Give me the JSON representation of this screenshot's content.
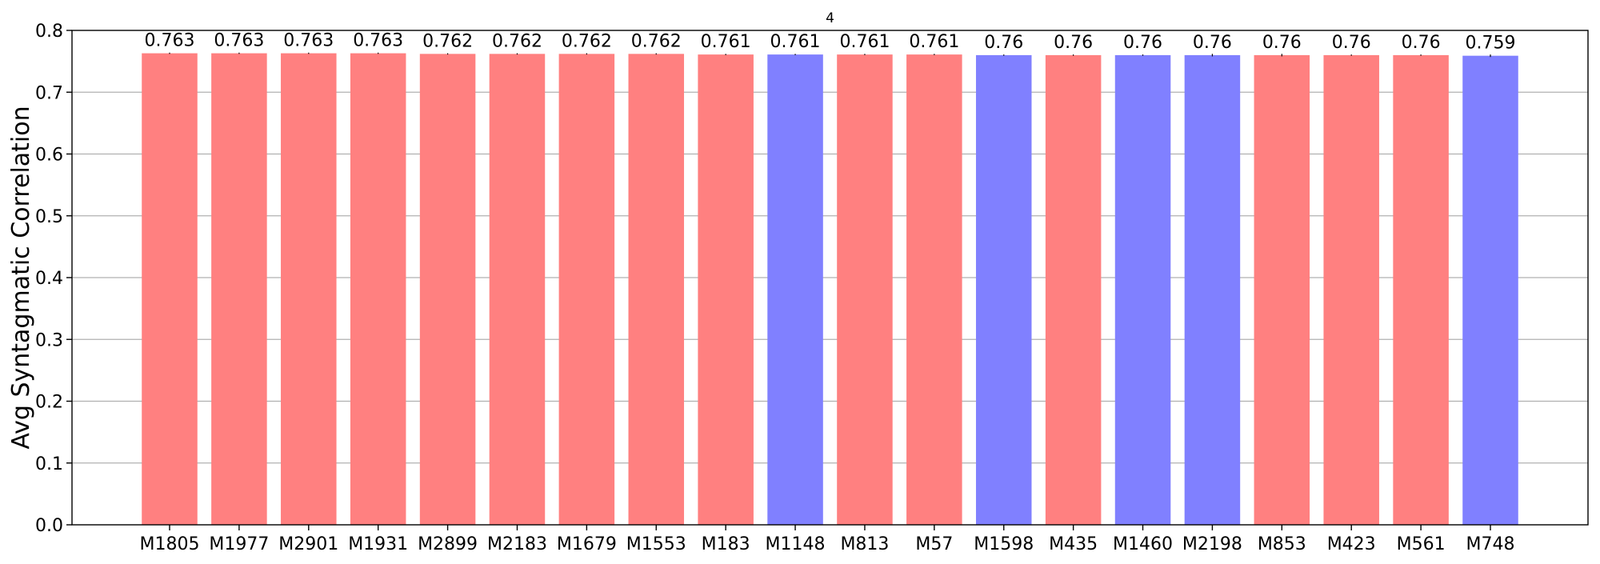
{
  "chart_data": {
    "type": "bar",
    "title": "4",
    "xlabel": "",
    "ylabel": "Avg Syntagmatic Correlation",
    "ylim": [
      0,
      0.8
    ],
    "yticks": [
      0.0,
      0.1,
      0.2,
      0.3,
      0.4,
      0.5,
      0.6,
      0.7,
      0.8
    ],
    "ytick_labels": [
      "0.0",
      "0.1",
      "0.2",
      "0.3",
      "0.4",
      "0.5",
      "0.6",
      "0.7",
      "0.8"
    ],
    "grid": "horizontal",
    "categories": [
      "M1805",
      "M1977",
      "M2901",
      "M1931",
      "M2899",
      "M2183",
      "M1679",
      "M1553",
      "M183",
      "M1148",
      "M813",
      "M57",
      "M1598",
      "M435",
      "M1460",
      "M2198",
      "M853",
      "M423",
      "M561",
      "M748"
    ],
    "values": [
      0.763,
      0.763,
      0.763,
      0.763,
      0.762,
      0.762,
      0.762,
      0.762,
      0.761,
      0.761,
      0.761,
      0.761,
      0.76,
      0.76,
      0.76,
      0.76,
      0.76,
      0.76,
      0.76,
      0.759
    ],
    "value_labels": [
      "0.763",
      "0.763",
      "0.763",
      "0.763",
      "0.762",
      "0.762",
      "0.762",
      "0.762",
      "0.761",
      "0.761",
      "0.761",
      "0.761",
      "0.76",
      "0.76",
      "0.76",
      "0.76",
      "0.76",
      "0.76",
      "0.76",
      "0.759"
    ],
    "bar_groups": [
      "red",
      "red",
      "red",
      "red",
      "red",
      "red",
      "red",
      "red",
      "red",
      "blue",
      "red",
      "red",
      "blue",
      "red",
      "blue",
      "blue",
      "red",
      "red",
      "red",
      "blue"
    ],
    "error": [
      0.001,
      0.001,
      0.001,
      0.001,
      0.001,
      0.001,
      0.001,
      0.001,
      0.001,
      0.001,
      0.001,
      0.001,
      0.001,
      0.001,
      0.001,
      0.002,
      0.002,
      0.001,
      0.001,
      0.002
    ],
    "colors": {
      "red": "#ff8080",
      "blue": "#8080ff"
    }
  }
}
